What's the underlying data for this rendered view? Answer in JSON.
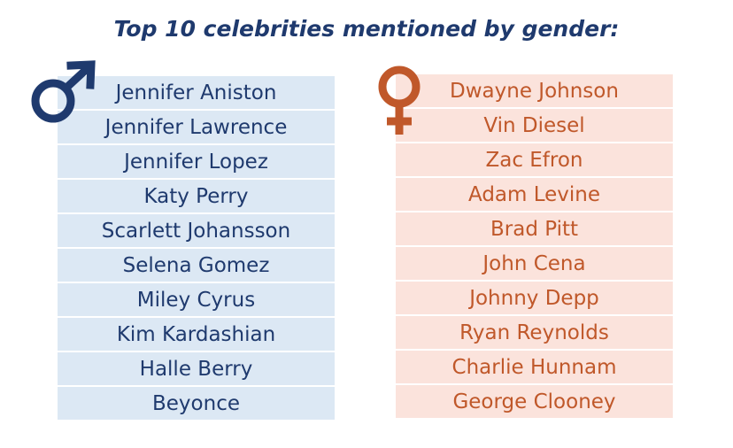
{
  "header": {
    "title": "Top 10 celebrities mentioned by gender:"
  },
  "lists": [
    {
      "names": [
        "Jennifer Aniston",
        "Jennifer Lawrence",
        "Jennifer Lopez",
        "Katy Perry",
        "Scarlett Johansson",
        "Selena Gomez",
        "Miley Cyrus",
        "Kim Kardashian",
        "Halle Berry",
        "Beyonce"
      ]
    },
    {
      "names": [
        "Dwayne Johnson",
        "Vin Diesel",
        "Zac Efron",
        "Adam Levine",
        "Brad Pitt",
        "John Cena",
        "Johnny Depp",
        "Ryan Reynolds",
        "Charlie Hunnam",
        "George Clooney"
      ]
    }
  ]
}
